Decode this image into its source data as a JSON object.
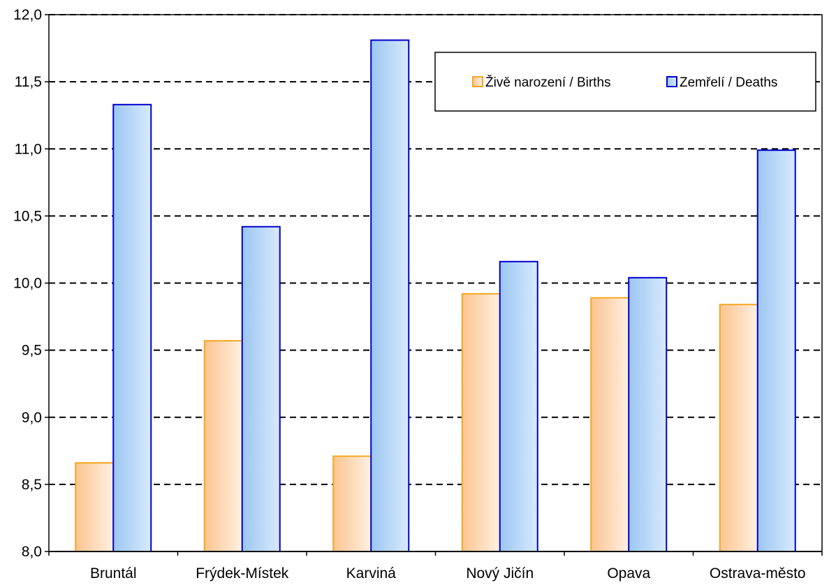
{
  "chart_data": {
    "type": "bar",
    "categories": [
      "Bruntál",
      "Frýdek-Místek",
      "Karviná",
      "Nový Jičín",
      "Opava",
      "Ostrava-město"
    ],
    "series": [
      {
        "name": "Živě narození / Births",
        "values": [
          8.66,
          9.57,
          8.71,
          9.92,
          9.89,
          9.84
        ],
        "color": "#f5a623"
      },
      {
        "name": "Zemřelí / Deaths",
        "values": [
          11.33,
          10.42,
          11.81,
          10.16,
          10.04,
          10.99
        ],
        "color": "#0000cc"
      }
    ],
    "ylim": [
      8.0,
      12.0
    ],
    "yticks": [
      "8,0",
      "8,5",
      "9,0",
      "9,5",
      "10,0",
      "10,5",
      "11,0",
      "11,5",
      "12,0"
    ],
    "ytick_values": [
      8.0,
      8.5,
      9.0,
      9.5,
      10.0,
      10.5,
      11.0,
      11.5,
      12.0
    ],
    "grid": "dashed horizontal",
    "legend_position": "top-right",
    "title": "",
    "xlabel": "",
    "ylabel": ""
  }
}
